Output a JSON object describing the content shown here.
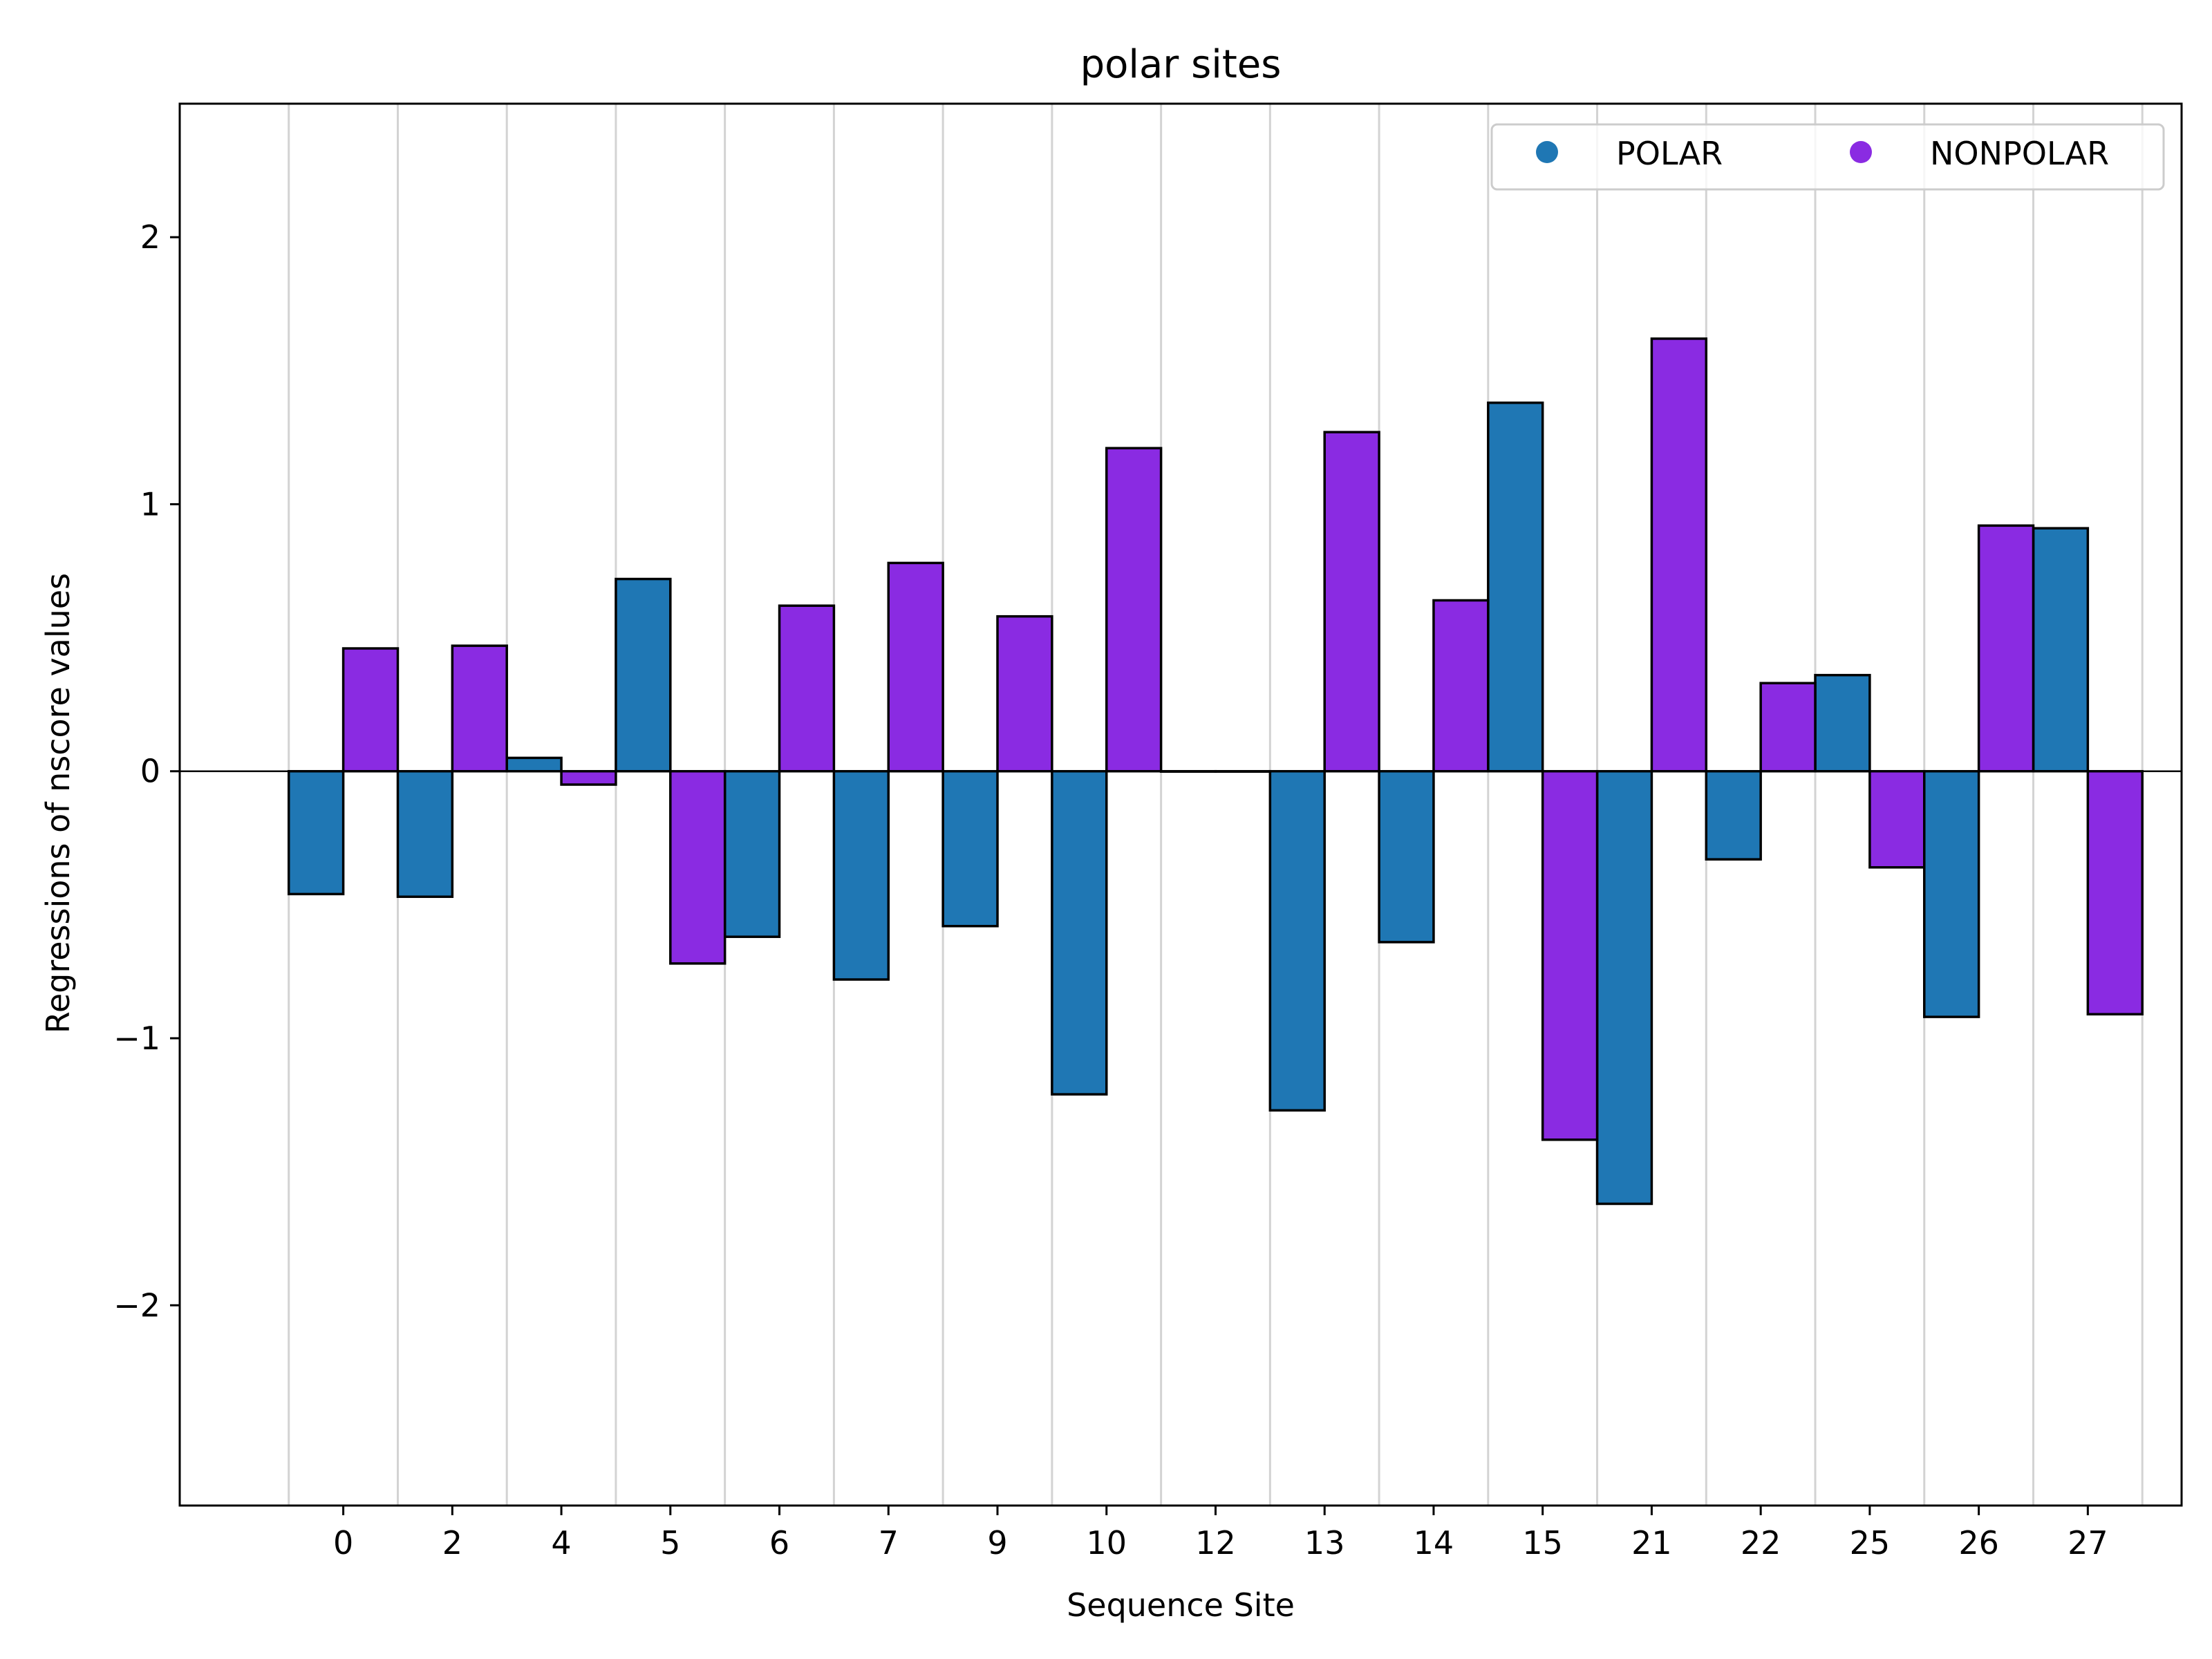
{
  "chart_data": {
    "type": "bar",
    "title": "polar sites",
    "xlabel": "Sequence Site",
    "ylabel": "Regressions of nscore values",
    "categories": [
      "0",
      "2",
      "4",
      "5",
      "6",
      "7",
      "9",
      "10",
      "12",
      "13",
      "14",
      "15",
      "21",
      "22",
      "25",
      "26",
      "27"
    ],
    "series": [
      {
        "name": "POLAR",
        "color": "#1f77b4",
        "values": [
          -0.46,
          -0.47,
          0.05,
          0.72,
          -0.62,
          -0.78,
          -0.58,
          -1.21,
          0.0,
          -1.27,
          -0.64,
          1.38,
          -1.62,
          -0.33,
          0.36,
          -0.92,
          0.91
        ]
      },
      {
        "name": "NONPOLAR",
        "color": "#8a2be2",
        "values": [
          0.46,
          0.47,
          -0.05,
          -0.72,
          0.62,
          0.78,
          0.58,
          1.21,
          0.0,
          1.27,
          0.64,
          -1.38,
          1.62,
          0.33,
          -0.36,
          0.92,
          -0.91
        ]
      }
    ],
    "ylim": [
      -2.75,
      2.5
    ],
    "yticks": [
      2,
      1,
      0,
      -1,
      -2
    ],
    "ytick_labels": [
      "2",
      "1",
      "0",
      "−1",
      "−2"
    ],
    "grid": "vertical separators between sites",
    "legend_position": "top-right",
    "edge_color": "#000000",
    "grid_color": "#d3d3d3"
  }
}
